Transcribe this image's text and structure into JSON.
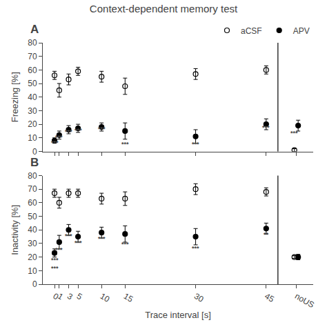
{
  "title": "Context-dependent memory test",
  "chart_data": [
    {
      "type": "scatter",
      "title": "A",
      "ylabel": "Freezing [%]",
      "xlim": [
        -2.5,
        55
      ],
      "xticks": [
        0,
        1,
        3,
        5,
        10,
        15,
        30,
        45,
        {
          "value": 51.4,
          "label": "noUS"
        }
      ],
      "ylim": [
        0,
        80
      ],
      "yticks": [
        0,
        10,
        20,
        30,
        40,
        50,
        60,
        70,
        80
      ],
      "grid": false,
      "tick_labels": "y",
      "legend": "upper right",
      "vline": 47.5,
      "series": [
        {
          "name": "aCSF",
          "color": "#000000",
          "marker": "circle-open",
          "x": [
            0,
            1,
            3,
            5,
            10,
            15,
            30,
            45,
            51
          ],
          "values": [
            56,
            45,
            53,
            59,
            55,
            48,
            57,
            60,
            1
          ],
          "errors": [
            3,
            5,
            4,
            3,
            4,
            6,
            4,
            3,
            1
          ]
        },
        {
          "name": "APV",
          "color": "#000000",
          "marker": "circle",
          "x": [
            0,
            1,
            3,
            5,
            10,
            15,
            30,
            45,
            51.8
          ],
          "values": [
            8,
            12,
            16,
            17,
            18,
            15,
            11,
            20,
            19
          ],
          "errors": [
            2,
            3,
            3,
            3,
            3,
            6,
            5,
            4,
            4
          ]
        }
      ],
      "annotations": [
        {
          "x": 0,
          "y": 3,
          "text": "***"
        },
        {
          "x": 1,
          "y": 7,
          "text": "***"
        },
        {
          "x": 3,
          "y": 11,
          "text": "***"
        },
        {
          "x": 5,
          "y": 12,
          "text": "***"
        },
        {
          "x": 10,
          "y": 13,
          "text": "***"
        },
        {
          "x": 15,
          "y": 2,
          "text": "***"
        },
        {
          "x": 30,
          "y": 2,
          "text": "***"
        },
        {
          "x": 45,
          "y": 14,
          "text": "***"
        },
        {
          "x": 51,
          "y": 10,
          "text": "***"
        }
      ]
    },
    {
      "type": "scatter",
      "title": "B",
      "ylabel": "Inactivity [%]",
      "xlabel": "Trace interval [s]",
      "xlim": [
        -2.5,
        55
      ],
      "xticks": [
        0,
        1,
        3,
        5,
        10,
        15,
        30,
        45,
        {
          "value": 51.4,
          "label": "noUS"
        }
      ],
      "ylim": [
        0,
        80
      ],
      "yticks": [
        0,
        10,
        20,
        30,
        40,
        50,
        60,
        70,
        80
      ],
      "grid": false,
      "vline": 47.5,
      "series": [
        {
          "name": "aCSF",
          "color": "#000000",
          "marker": "circle-open",
          "x": [
            0,
            1,
            3,
            5,
            10,
            15,
            30,
            45,
            51
          ],
          "values": [
            67,
            60,
            67,
            67,
            63,
            63,
            70,
            68,
            20
          ],
          "errors": [
            3,
            4,
            3,
            3,
            4,
            5,
            4,
            3,
            1
          ]
        },
        {
          "name": "APV",
          "color": "#000000",
          "marker": "circle",
          "x": [
            0,
            1,
            3,
            5,
            10,
            15,
            30,
            45,
            51.8
          ],
          "values": [
            23,
            31,
            40,
            35,
            38,
            37,
            35,
            41,
            20
          ],
          "errors": [
            3,
            5,
            4,
            4,
            4,
            6,
            6,
            4,
            2
          ]
        }
      ],
      "annotations": [
        {
          "x": 0,
          "y": 14,
          "text": "***"
        },
        {
          "x": 0,
          "y": 8,
          "text": "***"
        },
        {
          "x": 1,
          "y": 22,
          "text": "***"
        },
        {
          "x": 3,
          "y": 32,
          "text": "***"
        },
        {
          "x": 5,
          "y": 27,
          "text": "***"
        },
        {
          "x": 10,
          "y": 30,
          "text": "***"
        },
        {
          "x": 15,
          "y": 26,
          "text": "***"
        },
        {
          "x": 30,
          "y": 23,
          "text": "***"
        },
        {
          "x": 45,
          "y": 33,
          "text": "**"
        }
      ]
    }
  ]
}
